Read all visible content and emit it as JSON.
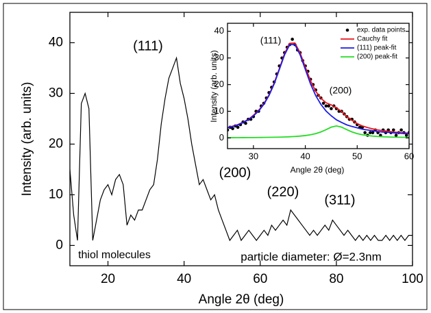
{
  "chart_data": [
    {
      "type": "line",
      "xlabel": "Angle 2θ (deg)",
      "ylabel": "Intensity (arb. units)",
      "xlim": [
        10,
        100
      ],
      "ylim": [
        -4,
        46
      ],
      "xticks": [
        20,
        40,
        60,
        80,
        100
      ],
      "yticks": [
        0,
        10,
        20,
        30,
        40
      ],
      "annotations": [
        "(111)",
        "(200)",
        "(220)",
        "(311)",
        "thiol molecules",
        "particle diameter: Ø=2.3nm"
      ],
      "series": [
        {
          "color": "#000000",
          "style": "line",
          "x": [
            10,
            11,
            12,
            13,
            14,
            15,
            16,
            17,
            18,
            19,
            20,
            21,
            22,
            23,
            24,
            25,
            26,
            27,
            28,
            29,
            30,
            31,
            32,
            33,
            34,
            35,
            36,
            37,
            38,
            39,
            40,
            41,
            42,
            43,
            44,
            45,
            46,
            47,
            48,
            49,
            50,
            51,
            52,
            53,
            54,
            55,
            56,
            57,
            58,
            59,
            60,
            61,
            62,
            63,
            64,
            65,
            66,
            67,
            68,
            69,
            70,
            71,
            72,
            73,
            74,
            75,
            76,
            77,
            78,
            79,
            80,
            81,
            82,
            83,
            84,
            85,
            86,
            87,
            88,
            89,
            90,
            91,
            92,
            93,
            94,
            95,
            96,
            97,
            98,
            99,
            100
          ],
          "values": [
            15,
            6,
            1,
            28,
            30,
            27,
            1,
            5,
            9,
            11,
            12,
            10,
            13,
            14,
            12,
            4,
            6,
            5,
            7,
            7,
            9,
            11,
            12,
            17,
            24,
            29,
            33,
            35,
            37,
            32,
            29,
            25,
            20,
            16,
            12,
            13,
            11,
            9,
            10,
            7,
            5,
            3,
            1,
            2,
            3,
            1,
            2,
            3,
            2,
            1,
            2,
            3,
            2,
            4,
            3,
            4,
            5,
            4,
            7,
            6,
            5,
            4,
            3,
            2,
            3,
            2,
            3,
            4,
            3,
            5,
            4,
            3,
            2,
            3,
            2,
            1,
            2,
            1,
            2,
            1,
            2,
            1,
            1,
            2,
            1,
            2,
            1,
            2,
            1,
            2,
            2
          ]
        }
      ]
    },
    {
      "type": "line",
      "xlabel": "Angle 2θ (deg)",
      "ylabel": "Intensity (arb. units)",
      "xlim": [
        25,
        60
      ],
      "ylim": [
        -4,
        43
      ],
      "xticks": [
        30,
        40,
        50,
        60
      ],
      "yticks": [
        0,
        10,
        20,
        30,
        40
      ],
      "legend": "upper right",
      "annotations": [
        "(111)",
        "(200)"
      ],
      "series": [
        {
          "name": "exp. data points",
          "color": "#000000",
          "style": "markers",
          "x": [
            25,
            25.5,
            26,
            26.5,
            27,
            27.5,
            28,
            28.5,
            29,
            29.5,
            30,
            30.5,
            31,
            31.5,
            32,
            32.5,
            33,
            33.5,
            34,
            34.5,
            35,
            35.5,
            36,
            36.5,
            37,
            37.5,
            38,
            38.5,
            39,
            39.5,
            40,
            40.5,
            41,
            41.5,
            42,
            42.5,
            43,
            43.5,
            44,
            44.5,
            45,
            45.5,
            46,
            46.5,
            47,
            47.5,
            48,
            48.5,
            49,
            49.5,
            50,
            50.5,
            51,
            51.5,
            52,
            52.5,
            53,
            53.5,
            54,
            54.5,
            55,
            55.5,
            56,
            56.5,
            57,
            57.5,
            58,
            58.5,
            59,
            59.5,
            60
          ],
          "values": [
            3,
            4,
            3.5,
            4.5,
            4,
            5,
            6,
            5.5,
            7,
            7,
            8,
            10,
            10,
            12,
            13,
            15,
            17,
            19,
            21,
            24,
            27,
            30,
            32,
            34,
            35,
            37,
            35,
            33,
            32,
            29,
            27,
            25,
            22,
            20,
            18,
            16,
            15,
            13,
            12,
            12,
            11,
            12,
            11,
            10,
            10,
            9,
            8,
            7,
            7,
            6,
            5,
            4,
            4,
            2,
            1,
            2,
            2,
            3,
            2,
            1,
            3,
            2,
            3,
            2,
            3,
            1,
            2,
            3,
            2,
            1,
            2
          ]
        },
        {
          "name": "Cauchy fit",
          "color": "#e8141c",
          "style": "line",
          "x": [
            25,
            26,
            27,
            28,
            29,
            30,
            31,
            32,
            33,
            34,
            35,
            36,
            37,
            38,
            39,
            40,
            41,
            42,
            43,
            44,
            45,
            46,
            47,
            48,
            49,
            50,
            51,
            52,
            53,
            54,
            55,
            56,
            57,
            58,
            59,
            60
          ],
          "values": [
            3.9,
            4.4,
            5.0,
            5.9,
            6.9,
            8.5,
            10.3,
            12.8,
            16.1,
            20.6,
            26.0,
            31.6,
            35.5,
            35.6,
            31.9,
            26.6,
            21.5,
            17.5,
            14.9,
            13.2,
            12.4,
            11.3,
            9.9,
            8.0,
            6.6,
            5.4,
            4.5,
            3.9,
            3.4,
            3.0,
            2.7,
            2.5,
            2.2,
            2.1,
            1.9,
            1.8
          ]
        },
        {
          "name": "(111) peak-fit",
          "color": "#1a1ae6",
          "style": "line",
          "x": [
            25,
            26,
            27,
            28,
            29,
            30,
            31,
            32,
            33,
            34,
            35,
            36,
            37,
            38,
            39,
            40,
            41,
            42,
            43,
            44,
            45,
            46,
            47,
            48,
            49,
            50,
            51,
            52,
            53,
            54,
            55,
            56,
            57,
            58,
            59,
            60
          ],
          "values": [
            3.8,
            4.3,
            4.9,
            5.8,
            6.8,
            8.3,
            10.1,
            12.6,
            15.9,
            20.3,
            25.7,
            31.2,
            35.0,
            35.0,
            31.2,
            25.7,
            20.3,
            15.9,
            12.6,
            10.1,
            8.3,
            6.8,
            5.8,
            4.9,
            4.3,
            3.8,
            3.3,
            3.0,
            2.7,
            2.4,
            2.2,
            2.1,
            1.9,
            1.8,
            1.7,
            1.6
          ]
        },
        {
          "name": "(200) peak-fit",
          "color": "#22dd22",
          "style": "line",
          "x": [
            25,
            26,
            27,
            28,
            29,
            30,
            31,
            32,
            33,
            34,
            35,
            36,
            37,
            38,
            39,
            40,
            41,
            42,
            43,
            44,
            45,
            46,
            47,
            48,
            49,
            50,
            51,
            52,
            53,
            54,
            55,
            56,
            57,
            58,
            59,
            60
          ],
          "values": [
            0.09,
            0.1,
            0.11,
            0.12,
            0.14,
            0.15,
            0.17,
            0.2,
            0.23,
            0.28,
            0.31,
            0.37,
            0.45,
            0.56,
            0.7,
            0.9,
            1.19,
            1.62,
            2.25,
            3.12,
            4.05,
            4.5,
            4.05,
            3.12,
            2.25,
            1.62,
            1.19,
            0.9,
            0.7,
            0.56,
            0.45,
            0.37,
            0.31,
            0.28,
            0.23,
            0.2
          ]
        }
      ]
    }
  ]
}
